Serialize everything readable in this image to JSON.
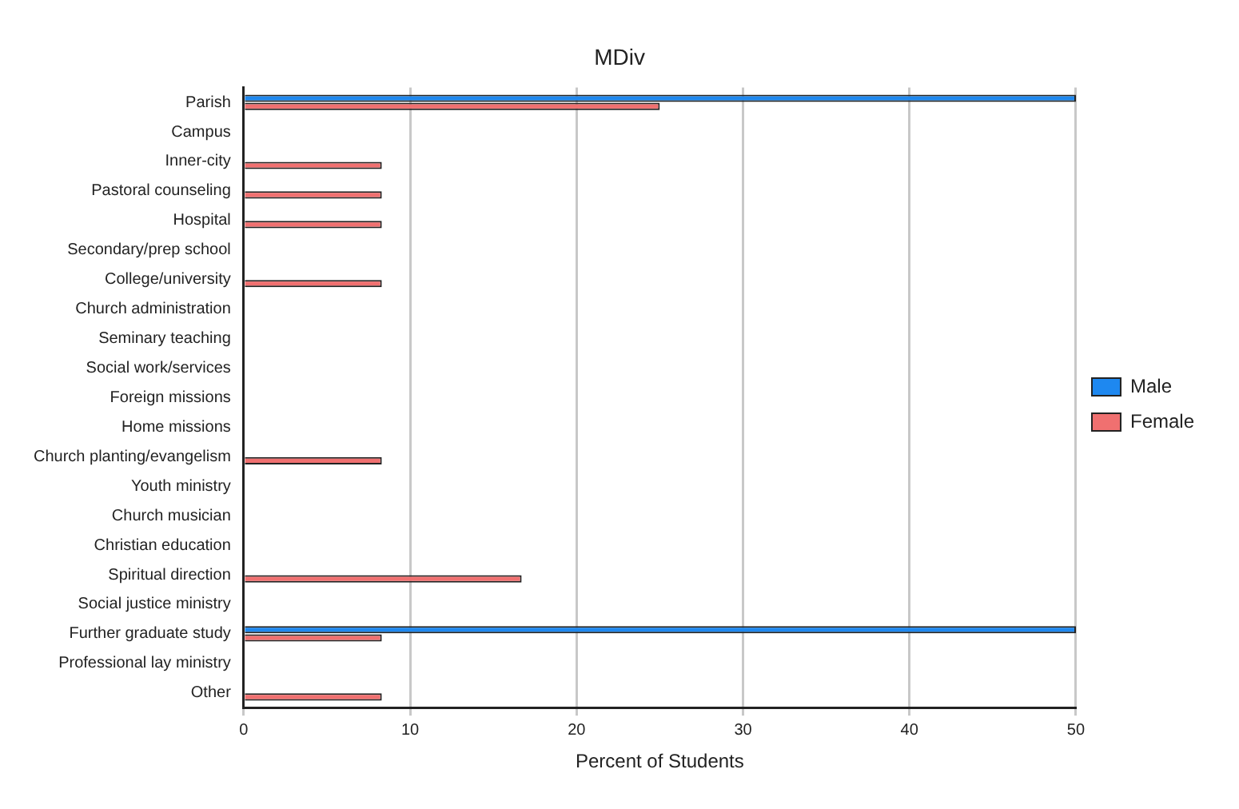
{
  "chart_data": {
    "type": "bar",
    "orientation": "horizontal",
    "title": "MDiv",
    "xlabel": "Percent of Students",
    "categories": [
      "Parish",
      "Campus",
      "Inner-city",
      "Pastoral counseling",
      "Hospital",
      "Secondary/prep school",
      "College/university",
      "Church administration",
      "Seminary teaching",
      "Social work/services",
      "Foreign missions",
      "Home missions",
      "Church planting/evangelism",
      "Youth ministry",
      "Church musician",
      "Christian education",
      "Spiritual direction",
      "Social justice ministry",
      "Further graduate study",
      "Professional lay ministry",
      "Other"
    ],
    "series": [
      {
        "name": "Male",
        "color": "#1e88f0",
        "values": [
          50,
          0,
          0,
          0,
          0,
          0,
          0,
          0,
          0,
          0,
          0,
          0,
          0,
          0,
          0,
          0,
          0,
          0,
          50,
          0,
          0
        ]
      },
      {
        "name": "Female",
        "color": "#f07070",
        "values": [
          25,
          0,
          8.3,
          8.3,
          8.3,
          0,
          8.3,
          0,
          0,
          0,
          0,
          0,
          8.3,
          0,
          0,
          0,
          16.7,
          0,
          8.3,
          0,
          8.3
        ]
      }
    ],
    "xlim": [
      0,
      50
    ],
    "xticks": [
      0,
      10,
      20,
      30,
      40,
      50
    ],
    "grid": "x",
    "legend": "right"
  }
}
